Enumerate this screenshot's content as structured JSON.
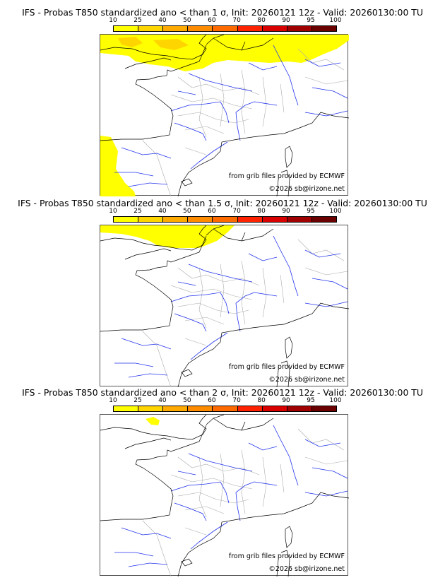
{
  "panels": [
    {
      "title": "IFS - Probas T850  standardized ano < than 1 σ, Init: 20260121 12z - Valid: 20260130:00 TU"
    },
    {
      "title": "IFS - Probas T850  standardized ano < than 1.5 σ, Init: 20260121 12z - Valid: 20260130:00 TU"
    },
    {
      "title": "IFS - Probas T850  standardized ano < than 2 σ, Init: 20260121 12z - Valid: 20260130:00 TU"
    }
  ],
  "colorbar": {
    "labels": [
      "10",
      "25",
      "40",
      "50",
      "60",
      "70",
      "80",
      "90",
      "95",
      "100"
    ],
    "colors": [
      "#ffff00",
      "#ffd500",
      "#ffaa00",
      "#ff8c00",
      "#ff6a00",
      "#ff2200",
      "#d90000",
      "#a00000",
      "#6a0000"
    ]
  },
  "credits": {
    "source": "from grib files provided by ECMWF",
    "copyright": "©2026 sb@irizone.net"
  }
}
